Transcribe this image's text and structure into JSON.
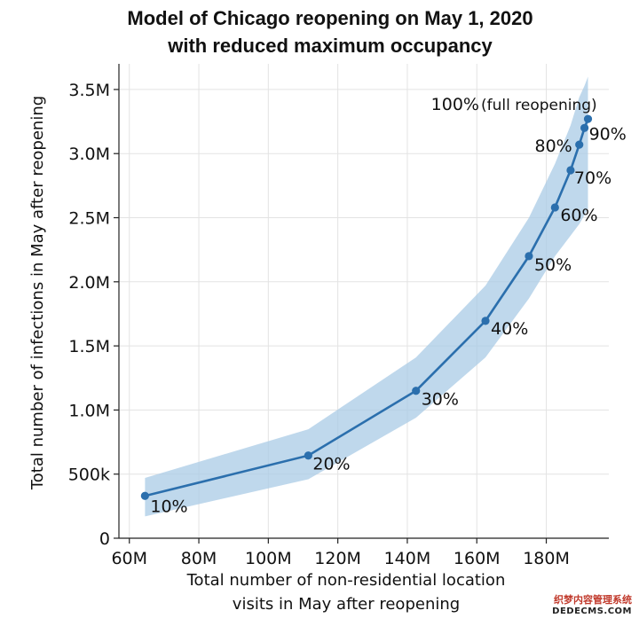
{
  "chart_data": {
    "type": "line",
    "title_lines": [
      "Model of Chicago reopening on May 1, 2020",
      "with reduced maximum occupancy"
    ],
    "xlabel_lines": [
      "Total number of non-residential location",
      "visits in May after reopening"
    ],
    "ylabel": "Total number of infections in May after reopening",
    "xlim": [
      57,
      198
    ],
    "ylim": [
      0,
      3.7
    ],
    "x_unit_note": "millions of visits",
    "y_unit_note": "millions of infections",
    "x_ticks": [
      {
        "value": 60,
        "label": "60M"
      },
      {
        "value": 80,
        "label": "80M"
      },
      {
        "value": 100,
        "label": "100M"
      },
      {
        "value": 120,
        "label": "120M"
      },
      {
        "value": 140,
        "label": "140M"
      },
      {
        "value": 160,
        "label": "160M"
      },
      {
        "value": 180,
        "label": "180M"
      }
    ],
    "y_ticks": [
      {
        "value": 0,
        "label": "0"
      },
      {
        "value": 0.5,
        "label": "500k"
      },
      {
        "value": 1.0,
        "label": "1.0M"
      },
      {
        "value": 1.5,
        "label": "1.5M"
      },
      {
        "value": 2.0,
        "label": "2.0M"
      },
      {
        "value": 2.5,
        "label": "2.5M"
      },
      {
        "value": 3.0,
        "label": "3.0M"
      },
      {
        "value": 3.5,
        "label": "3.5M"
      }
    ],
    "grid": true,
    "line_color": "#2b6fad",
    "band_color": "#a9cbe5",
    "points": [
      {
        "x": 64.5,
        "y": 0.33,
        "label": "10%",
        "lower": 0.17,
        "upper": 0.47
      },
      {
        "x": 111.5,
        "y": 0.645,
        "label": "20%",
        "lower": 0.46,
        "upper": 0.85
      },
      {
        "x": 142.5,
        "y": 1.15,
        "label": "30%",
        "lower": 0.94,
        "upper": 1.41
      },
      {
        "x": 162.5,
        "y": 1.695,
        "label": "40%",
        "lower": 1.41,
        "upper": 1.97
      },
      {
        "x": 175.0,
        "y": 2.2,
        "label": "50%",
        "lower": 1.87,
        "upper": 2.5
      },
      {
        "x": 182.5,
        "y": 2.58,
        "label": "60%",
        "lower": 2.2,
        "upper": 2.92
      },
      {
        "x": 187.0,
        "y": 2.87,
        "label": "70%",
        "lower": 2.36,
        "upper": 3.22
      },
      {
        "x": 189.5,
        "y": 3.07,
        "label": "80%",
        "lower": 2.45,
        "upper": 3.44
      },
      {
        "x": 191.0,
        "y": 3.2,
        "label": "90%",
        "lower": 2.52,
        "upper": 3.53
      },
      {
        "x": 192.0,
        "y": 3.27,
        "label": "100%",
        "note": "(full reopening)",
        "lower": 2.57,
        "upper": 3.6
      }
    ]
  },
  "watermark": {
    "line1": "织梦内容管理系统",
    "line2": "DEDECMS.COM"
  }
}
